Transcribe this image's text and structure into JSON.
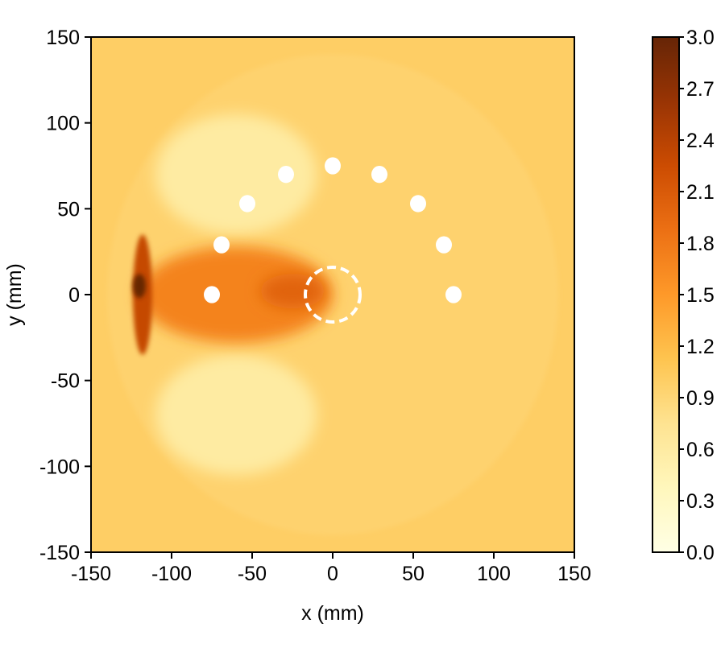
{
  "chart_data": {
    "type": "heatmap",
    "title": "",
    "xlabel": "x (mm)",
    "ylabel": "y (mm)",
    "xlim": [
      -150,
      150
    ],
    "ylim": [
      -150,
      150
    ],
    "xticks": [
      -150,
      -100,
      -50,
      0,
      50,
      100,
      150
    ],
    "yticks": [
      -150,
      -100,
      -50,
      0,
      50,
      100,
      150
    ],
    "xtick_labels": [
      "-150",
      "-100",
      "-50",
      "0",
      "50",
      "100",
      "150"
    ],
    "ytick_labels": [
      "-150",
      "-100",
      "-50",
      "0",
      "50",
      "100",
      "150"
    ],
    "colorbar": {
      "range": [
        0.0,
        3.0
      ],
      "ticks": [
        0.0,
        0.3,
        0.6,
        0.9,
        1.2,
        1.5,
        1.8,
        2.1,
        2.4,
        2.7,
        3.0
      ],
      "tick_labels": [
        "0.0",
        "0.3",
        "0.6",
        "0.9",
        "1.2",
        "1.5",
        "1.8",
        "2.1",
        "2.4",
        "2.7",
        "3.0"
      ],
      "colormap": "YlOrBr"
    },
    "background_value": 1.0,
    "field_features": [
      {
        "shape": "disk",
        "cx": 0,
        "cy": 0,
        "r": 140,
        "value": 0.95
      },
      {
        "shape": "ellipse",
        "cx": -60,
        "cy": 70,
        "rx": 50,
        "ry": 35,
        "value": 0.6
      },
      {
        "shape": "ellipse",
        "cx": -60,
        "cy": -70,
        "rx": 50,
        "ry": 35,
        "value": 0.6
      },
      {
        "shape": "ellipse",
        "cx": -60,
        "cy": 0,
        "rx": 60,
        "ry": 28,
        "value": 1.7
      },
      {
        "shape": "ellipse",
        "cx": -25,
        "cy": 2,
        "rx": 20,
        "ry": 10,
        "value": 2.0
      },
      {
        "shape": "ellipse",
        "cx": -118,
        "cy": 0,
        "rx": 6,
        "ry": 35,
        "value": 2.3
      },
      {
        "shape": "ellipse",
        "cx": -120,
        "cy": 5,
        "rx": 4,
        "ry": 7,
        "value": 3.0
      }
    ],
    "markers": {
      "points": [
        [
          -75,
          0
        ],
        [
          -69,
          29
        ],
        [
          -53,
          53
        ],
        [
          -29,
          70
        ],
        [
          0,
          75
        ],
        [
          29,
          70
        ],
        [
          53,
          53
        ],
        [
          69,
          29
        ],
        [
          75,
          0
        ]
      ],
      "color": "#ffffff",
      "radius_mm": 5
    },
    "dashed_circle": {
      "cx": 0,
      "cy": 0,
      "r": 17,
      "color": "#ffffff"
    }
  }
}
